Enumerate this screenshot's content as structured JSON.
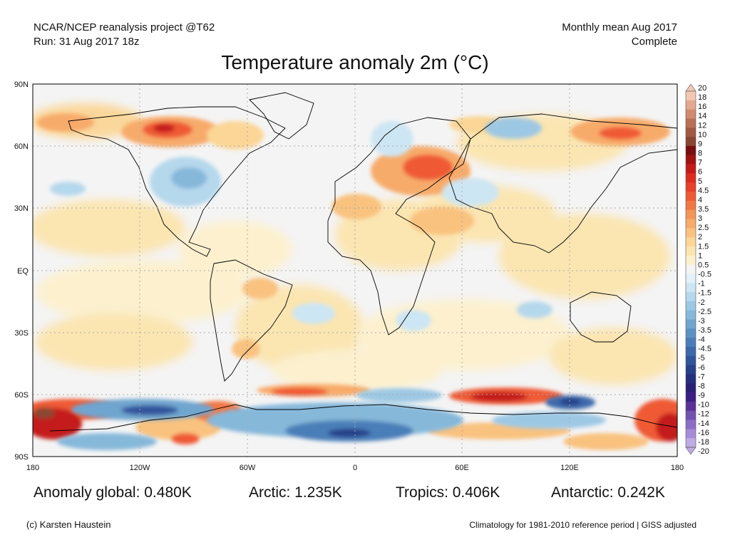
{
  "header": {
    "source_line": "NCAR/NCEP reanalysis project @T62",
    "run_line": "Run: 31 Aug 2017 18z",
    "period_line": "Monthly mean Aug 2017",
    "status_line": "Complete"
  },
  "title": "Temperature anomaly 2m (°C)",
  "map": {
    "lat_labels": [
      "90N",
      "60N",
      "30N",
      "EQ",
      "30S",
      "60S",
      "90S"
    ],
    "lon_labels": [
      "180",
      "120W",
      "60W",
      "0",
      "60E",
      "120E",
      "180"
    ]
  },
  "colorbar": {
    "labels": [
      "20",
      "18",
      "16",
      "14",
      "12",
      "10",
      "9",
      "8",
      "7",
      "6",
      "5",
      "4.5",
      "4",
      "3.5",
      "3",
      "2.5",
      "2",
      "1.5",
      "1",
      "0.5",
      "-0.5",
      "-1",
      "-1.5",
      "-2",
      "-2.5",
      "-3",
      "-3.5",
      "-4",
      "-4.5",
      "-5",
      "-6",
      "-7",
      "-8",
      "-9",
      "-10",
      "-12",
      "-14",
      "-16",
      "-18",
      "-20"
    ],
    "colors": [
      "#f2c8b2",
      "#e3a98f",
      "#d08b6f",
      "#b97055",
      "#a15a42",
      "#8a4632",
      "#7a0e0e",
      "#a01212",
      "#c41a1a",
      "#dc2c20",
      "#e8402a",
      "#ef5a36",
      "#f27744",
      "#f59457",
      "#f7ab6a",
      "#f9c27f",
      "#fbd696",
      "#fce5ae",
      "#fdf0cd",
      "#f4f4f4",
      "#e4f1f8",
      "#cde6f3",
      "#b5d8ec",
      "#9dc8e4",
      "#86b8da",
      "#6fa5cf",
      "#5b92c4",
      "#4a7eb8",
      "#3c6aab",
      "#30559c",
      "#27418a",
      "#242f7d",
      "#2b2075",
      "#3d1e85",
      "#5a3199",
      "#7452b0",
      "#8c6fc5",
      "#a68cd8",
      "#c0aae6"
    ]
  },
  "stats": {
    "global": "Anomaly global: 0.480K",
    "arctic": "Arctic: 1.235K",
    "tropics": "Tropics: 0.406K",
    "antarctic": "Antarctic: 0.242K"
  },
  "footer": {
    "credit": "(c) Karsten Haustein",
    "note": "Climatology for 1981-2010 reference period | GISS adjusted"
  }
}
